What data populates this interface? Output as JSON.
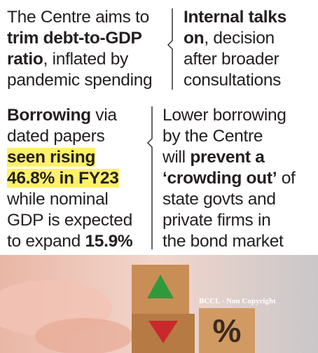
{
  "blocks": [
    {
      "lines": [
        [
          {
            "text": "The Centre aims to"
          }
        ],
        [
          {
            "text": "trim debt-to-GDP",
            "bold": true
          }
        ],
        [
          {
            "text": "ratio",
            "bold": true
          },
          {
            "text": ", inflated by"
          }
        ],
        [
          {
            "text": "pandemic spending"
          }
        ]
      ]
    },
    {
      "lines": [
        [
          {
            "text": "Internal talks",
            "bold": true
          }
        ],
        [
          {
            "text": "on",
            "bold": true
          },
          {
            "text": ", decision"
          }
        ],
        [
          {
            "text": "after broader"
          }
        ],
        [
          {
            "text": "consultations"
          }
        ]
      ]
    },
    {
      "lines": [
        [
          {
            "text": "Borrowing",
            "bold": true
          },
          {
            "text": " via"
          }
        ],
        [
          {
            "text": "dated papers"
          }
        ],
        [
          {
            "text": "seen rising",
            "bold": true,
            "highlight": true
          }
        ],
        [
          {
            "text": "46.8% in FY23",
            "bold": true,
            "highlight": true
          }
        ],
        [
          {
            "text": "while nominal"
          }
        ],
        [
          {
            "text": "GDP is expected"
          }
        ],
        [
          {
            "text": "to expand "
          },
          {
            "text": "15.9%",
            "bold": true
          }
        ]
      ]
    },
    {
      "lines": [
        [
          {
            "text": "Lower borrowing"
          }
        ],
        [
          {
            "text": "by the Centre"
          }
        ],
        [
          {
            "text": "will "
          },
          {
            "text": "prevent a",
            "bold": true
          }
        ],
        [
          {
            "text": "‘crowding out’",
            "bold": true
          },
          {
            "text": " of"
          }
        ],
        [
          {
            "text": "state govts and"
          }
        ],
        [
          {
            "text": "private firms in"
          }
        ],
        [
          {
            "text": "the bond market"
          }
        ]
      ]
    }
  ],
  "photo": {
    "watermark": "BCCL - Non Copyright"
  }
}
